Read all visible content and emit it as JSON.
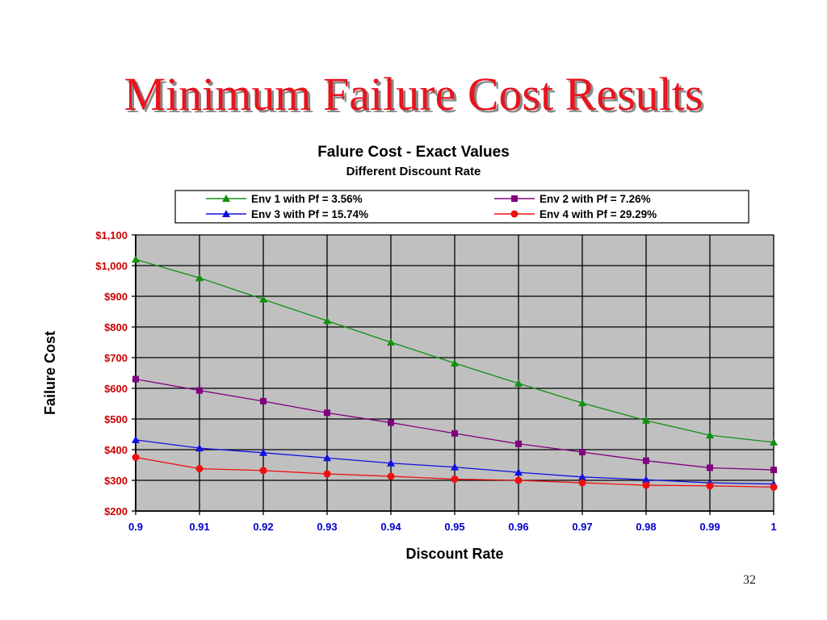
{
  "slide": {
    "title": "Minimum Failure Cost Results",
    "page_number": "32"
  },
  "colors": {
    "title": "#e8141e",
    "plot_background": "#c0c0c0",
    "tick_label": "#cc0000",
    "x_tick_label": "#0000cc"
  },
  "chart_data": {
    "type": "line",
    "title": "Falure Cost - Exact Values",
    "subtitle": "Different Discount Rate",
    "xlabel": "Discount Rate",
    "ylabel": "Failure Cost",
    "x": [
      0.9,
      0.91,
      0.92,
      0.93,
      0.94,
      0.95,
      0.96,
      0.97,
      0.98,
      0.99,
      1
    ],
    "x_tick_labels": [
      "0.9",
      "0.91",
      "0.92",
      "0.93",
      "0.94",
      "0.95",
      "0.96",
      "0.97",
      "0.98",
      "0.99",
      "1"
    ],
    "ylim": [
      200,
      1100
    ],
    "y_ticks": [
      200,
      300,
      400,
      500,
      600,
      700,
      800,
      900,
      1000,
      1100
    ],
    "y_tick_labels": [
      "$200",
      "$300",
      "$400",
      "$500",
      "$600",
      "$700",
      "$800",
      "$900",
      "$1,000",
      "$1,100"
    ],
    "grid": true,
    "legend_position": "top",
    "series": [
      {
        "name": "Env 1 with Pf = 3.56%",
        "color": "#109010",
        "marker": "triangle",
        "values": [
          1020,
          960,
          890,
          820,
          750,
          682,
          616,
          552,
          495,
          447,
          424
        ]
      },
      {
        "name": "Env 2 with Pf = 7.26%",
        "color": "#800080",
        "marker": "square",
        "values": [
          630,
          593,
          558,
          520,
          488,
          453,
          419,
          392,
          364,
          341,
          334
        ]
      },
      {
        "name": "Env 3 with Pf = 15.74%",
        "color": "#1010e0",
        "marker": "triangle",
        "values": [
          432,
          405,
          390,
          373,
          356,
          343,
          326,
          311,
          302,
          292,
          288
        ]
      },
      {
        "name": "Env 4 with Pf = 29.29%",
        "color": "#ee1010",
        "marker": "circle",
        "values": [
          375,
          338,
          332,
          321,
          313,
          304,
          300,
          292,
          284,
          282,
          278
        ]
      }
    ]
  }
}
